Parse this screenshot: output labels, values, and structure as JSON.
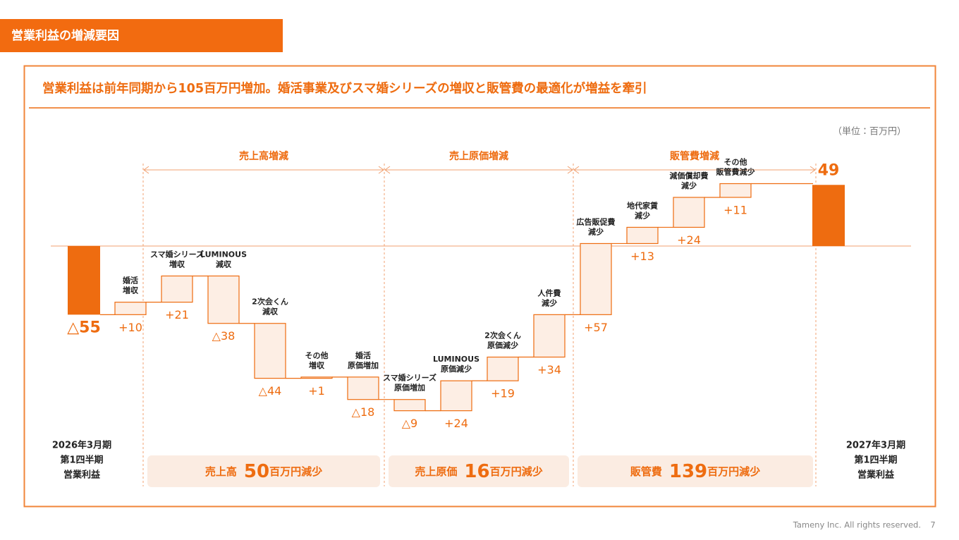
{
  "header": {
    "title": "営業利益の増減要因"
  },
  "headline": "営業利益は前年同期から105百万円増加。婚活事業及びスマ婚シリーズの増収と販管費の最適化が増益を牽引",
  "unit_note": "（単位：百万円）",
  "chart_data": {
    "type": "waterfall",
    "categories": [
      [
        "2026年3月期",
        "第1四半期",
        "営業利益"
      ],
      [
        "婚活",
        "増収"
      ],
      [
        "スマ婚シリーズ",
        "増収"
      ],
      [
        "LUMINOUS",
        "減収"
      ],
      [
        "2次会くん",
        "減収"
      ],
      [
        "その他",
        "増収"
      ],
      [
        "婚活",
        "原価増加"
      ],
      [
        "スマ婚シリーズ",
        "原価増加"
      ],
      [
        "LUMINOUS",
        "原価減少"
      ],
      [
        "2次会くん",
        "原価減少"
      ],
      [
        "人件費",
        "減少"
      ],
      [
        "広告販促費",
        "減少"
      ],
      [
        "地代家賃",
        "減少"
      ],
      [
        "減価償却費",
        "減少"
      ],
      [
        "その他",
        "販管費減少"
      ],
      [
        "2027年3月期",
        "第1四半期",
        "営業利益"
      ]
    ],
    "values": [
      -55,
      10,
      21,
      -38,
      -44,
      1,
      -18,
      -9,
      24,
      19,
      34,
      57,
      13,
      24,
      11,
      49
    ],
    "value_labels": [
      "△55",
      "+10",
      "+21",
      "△38",
      "△44",
      "+1",
      "△18",
      "△9",
      "+24",
      "+19",
      "+34",
      "+57",
      "+13",
      "+24",
      "+11",
      null
    ],
    "measures": [
      "total",
      "relative",
      "relative",
      "relative",
      "relative",
      "relative",
      "relative",
      "relative",
      "relative",
      "relative",
      "relative",
      "relative",
      "relative",
      "relative",
      "relative",
      "total"
    ],
    "total_color": "#ee6c10",
    "delta_color": "#fdeee4",
    "groups": [
      {
        "name": "売上高増減",
        "summary_label": "売上高",
        "summary_value": 50,
        "summary_unit": "百万円減少"
      },
      {
        "name": "売上原価増減",
        "summary_label": "売上原価",
        "summary_value": 16,
        "summary_unit": "百万円減少"
      },
      {
        "name": "販管費増減",
        "summary_label": "販管費",
        "summary_value": 139,
        "summary_unit": "百万円減少"
      }
    ]
  },
  "footer": {
    "copyright": "Tameny Inc. All rights reserved.",
    "page": "7"
  }
}
